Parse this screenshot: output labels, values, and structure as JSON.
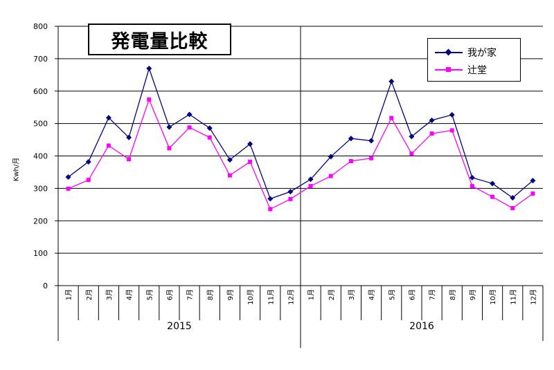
{
  "chart_data": {
    "type": "line",
    "title": "発電量比較",
    "ylabel": "Kwh/月",
    "ylim": [
      0,
      800
    ],
    "yticks": [
      0,
      100,
      200,
      300,
      400,
      500,
      600,
      700,
      800
    ],
    "grid": true,
    "legend_position": "top-right",
    "groups": [
      {
        "label": "2015",
        "months": [
          "1月",
          "2月",
          "3月",
          "4月",
          "5月",
          "6月",
          "7月",
          "8月",
          "9月",
          "10月",
          "11月",
          "12月"
        ]
      },
      {
        "label": "2016",
        "months": [
          "1月",
          "2月",
          "3月",
          "4月",
          "5月",
          "6月",
          "7月",
          "8月",
          "9月",
          "10月",
          "11月",
          "12月"
        ]
      }
    ],
    "series": [
      {
        "name": "我が家",
        "color": "#000080",
        "marker": "diamond",
        "values": [
          335,
          382,
          518,
          457,
          670,
          489,
          528,
          486,
          388,
          437,
          268,
          290,
          328,
          398,
          454,
          447,
          630,
          460,
          510,
          527,
          333,
          315,
          271,
          324
        ]
      },
      {
        "name": "辻堂",
        "color": "#ff00ff",
        "marker": "square",
        "values": [
          299,
          326,
          432,
          390,
          574,
          424,
          488,
          457,
          340,
          382,
          236,
          267,
          307,
          338,
          384,
          393,
          517,
          407,
          469,
          479,
          307,
          274,
          239,
          284
        ]
      }
    ]
  }
}
